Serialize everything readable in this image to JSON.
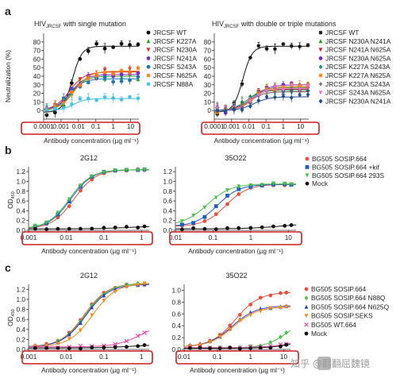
{
  "figure": {
    "panel_labels": [
      "a",
      "b",
      "c"
    ],
    "watermark": "知乎 @翻翻屈魏镜",
    "watermark_logo_text": "知乎",
    "highlight_color": "#cc1f1f"
  },
  "chart_data": [
    {
      "id": "a-left",
      "panel": "a",
      "type": "line",
      "title": "HIV_JRCSF with single mutation",
      "title_main": "HIV",
      "title_sub": "JRCSF",
      "title_rest": " with single mutation",
      "ylabel": "Neutralization (%)",
      "xlabel": "Antibody concentration (µg ml⁻¹)",
      "xscale": "log",
      "xlim": [
        0.0001,
        30
      ],
      "ylim": [
        -10,
        90
      ],
      "xticks": [
        0.0001,
        0.001,
        0.01,
        0.1,
        1,
        10
      ],
      "xtick_labels": [
        "0.0001",
        "0.001",
        "0.01",
        "0.1",
        "1",
        "10"
      ],
      "yticks": [
        0,
        10,
        20,
        30,
        40,
        50,
        60,
        70,
        80
      ],
      "ytick_labels": [
        "0",
        "10",
        "20",
        "30",
        "40",
        "50",
        "60",
        "70",
        "80"
      ],
      "x": [
        0.00015,
        0.00045,
        0.0014,
        0.0041,
        0.0123,
        0.037,
        0.11,
        0.33,
        1,
        3,
        9,
        27
      ],
      "legend_position": "right",
      "series": [
        {
          "name": "JRCSF WT",
          "color": "#111111",
          "marker": "circle",
          "curve": {
            "bottom": -2,
            "top": 75,
            "ec50": 0.0045,
            "hill": 1.6
          }
        },
        {
          "name": "JRCSF K227A",
          "color": "#2ca02c",
          "marker": "triangle-up",
          "curve": {
            "bottom": 0,
            "top": 40,
            "ec50": 0.004,
            "hill": 1.1
          }
        },
        {
          "name": "JRCSF N230A",
          "color": "#d62728",
          "marker": "triangle-down",
          "curve": {
            "bottom": 0,
            "top": 45,
            "ec50": 0.003,
            "hill": 1.0
          }
        },
        {
          "name": "JRCSF N241A",
          "color": "#7b2fbe",
          "marker": "circle",
          "curve": {
            "bottom": 0,
            "top": 42,
            "ec50": 0.0035,
            "hill": 1.0
          }
        },
        {
          "name": "JRCSF S243A",
          "color": "#1f77b4",
          "marker": "circle",
          "curve": {
            "bottom": 0,
            "top": 37,
            "ec50": 0.003,
            "hill": 1.1
          }
        },
        {
          "name": "JRCSF N625A",
          "color": "#ff7f0e",
          "marker": "star",
          "curve": {
            "bottom": 0,
            "top": 46,
            "ec50": 0.006,
            "hill": 1.0
          }
        },
        {
          "name": "JRCSF N88A",
          "color": "#3fc0e0",
          "marker": "star",
          "curve": {
            "bottom": 0,
            "top": 14,
            "ec50": 0.005,
            "hill": 1.2
          }
        }
      ]
    },
    {
      "id": "a-right",
      "panel": "a",
      "type": "line",
      "title": "HIV_JRCSF with double or triple mutations",
      "title_main": "HIV",
      "title_sub": "JRCSF",
      "title_rest": " with double or triple mutations",
      "ylabel": "",
      "xlabel": "Antibody concentration (µg ml⁻¹)",
      "xscale": "log",
      "xlim": [
        0.0001,
        30
      ],
      "ylim": [
        -10,
        90
      ],
      "xticks": [
        0.0001,
        0.001,
        0.01,
        0.1,
        1,
        10
      ],
      "xtick_labels": [
        "0.0001",
        "0.001",
        "0.01",
        "0.1",
        "1",
        "10"
      ],
      "yticks": [
        0,
        10,
        20,
        30,
        40,
        50,
        60,
        70,
        80
      ],
      "ytick_labels": [
        "0",
        "10",
        "20",
        "30",
        "40",
        "50",
        "60",
        "70",
        "80"
      ],
      "x": [
        0.00015,
        0.00045,
        0.0014,
        0.0041,
        0.0123,
        0.037,
        0.11,
        0.33,
        1,
        3,
        9,
        27
      ],
      "legend_position": "right",
      "series": [
        {
          "name": "JRCSF WT",
          "color": "#111111",
          "marker": "star",
          "curve": {
            "bottom": -2,
            "top": 75,
            "ec50": 0.0045,
            "hill": 1.6
          }
        },
        {
          "name": "JRCSF N230A N241A",
          "color": "#2ca02c",
          "marker": "triangle-up",
          "curve": {
            "bottom": 0,
            "top": 27,
            "ec50": 0.01,
            "hill": 1.0
          }
        },
        {
          "name": "JRCSF N241A N625A",
          "color": "#d62728",
          "marker": "triangle-down",
          "curve": {
            "bottom": 0,
            "top": 25,
            "ec50": 0.012,
            "hill": 1.0
          }
        },
        {
          "name": "JRCSF N230A N625A",
          "color": "#7b2fbe",
          "marker": "circle",
          "curve": {
            "bottom": 0,
            "top": 30,
            "ec50": 0.02,
            "hill": 1.0
          }
        },
        {
          "name": "JRCSF K227A S243A",
          "color": "#2b8a6e",
          "marker": "diamond",
          "curve": {
            "bottom": 0,
            "top": 24,
            "ec50": 0.008,
            "hill": 1.0
          }
        },
        {
          "name": "JRCSF K227A N625A",
          "color": "#ff7f0e",
          "marker": "star",
          "curve": {
            "bottom": 0,
            "top": 28,
            "ec50": 0.02,
            "hill": 1.0
          }
        },
        {
          "name": "JRCSF K230A S243A",
          "color": "#555555",
          "marker": "plus",
          "curve": {
            "bottom": 0,
            "top": 22,
            "ec50": 0.01,
            "hill": 1.0
          }
        },
        {
          "name": "JRCSF S243A N625A",
          "color": "#e377c2",
          "marker": "triangle-down",
          "curve": {
            "bottom": 0,
            "top": 26,
            "ec50": 0.015,
            "hill": 1.0
          }
        },
        {
          "name": "JRCSF N230A N241A",
          "color": "#1f4e8c",
          "marker": "diamond",
          "curve": {
            "bottom": 0,
            "top": 16,
            "ec50": 0.02,
            "hill": 1.0
          }
        }
      ]
    },
    {
      "id": "b-left",
      "panel": "b",
      "type": "line",
      "title": "2G12",
      "ylabel": "OD_450",
      "ylabel_main": "OD",
      "ylabel_sub": "450",
      "xlabel": "Antibody concentration (µg ml⁻¹)",
      "xscale": "log",
      "xlim": [
        0.001,
        1.6
      ],
      "ylim": [
        0,
        1.3
      ],
      "xticks": [
        0.001,
        0.01,
        0.1,
        1
      ],
      "xtick_labels": [
        "0.001",
        "0.01",
        "0.1",
        "1"
      ],
      "yticks": [
        0,
        0.2,
        0.4,
        0.6,
        0.8,
        1.0,
        1.2
      ],
      "ytick_labels": [
        "0.0",
        "0.2",
        "0.4",
        "0.6",
        "0.8",
        "1.0",
        "1.2"
      ],
      "x": [
        0.0015,
        0.003,
        0.006,
        0.012,
        0.024,
        0.048,
        0.1,
        0.2,
        0.4,
        0.8,
        1.2
      ],
      "legend_position": "none",
      "series": [
        {
          "name": "BG505 SOSIP.664",
          "color": "#e8523b",
          "marker": "circle",
          "curve": {
            "bottom": 0.03,
            "top": 1.24,
            "ec50": 0.016,
            "hill": 1.5
          }
        },
        {
          "name": "BG505 SOSIP.664 +kif",
          "color": "#1f5fbf",
          "marker": "square",
          "curve": {
            "bottom": 0.03,
            "top": 1.24,
            "ec50": 0.013,
            "hill": 1.5
          }
        },
        {
          "name": "BG505 SOSIP.664 293S",
          "color": "#4cc04a",
          "marker": "triangle-down",
          "curve": {
            "bottom": 0.03,
            "top": 1.24,
            "ec50": 0.012,
            "hill": 1.5
          }
        },
        {
          "name": "Mock",
          "color": "#111111",
          "marker": "circle",
          "curve": {
            "bottom": 0.03,
            "top": 0.09,
            "ec50": 0.5,
            "hill": 1.0
          }
        }
      ]
    },
    {
      "id": "b-right",
      "panel": "b",
      "type": "line",
      "title": "35O22",
      "ylabel": "",
      "xlabel": "Antibody concentration (µg ml⁻¹)",
      "xscale": "log",
      "xlim": [
        0.01,
        16
      ],
      "ylim": [
        0,
        1.3
      ],
      "xticks": [
        0.01,
        0.1,
        1,
        10
      ],
      "xtick_labels": [
        "0.01",
        "0.1",
        "1",
        "10"
      ],
      "yticks": [
        0,
        0.2,
        0.4,
        0.6,
        0.8,
        1.0,
        1.2
      ],
      "ytick_labels": [
        "0.0",
        "0.2",
        "0.4",
        "0.6",
        "0.8",
        "1.0",
        "1.2"
      ],
      "x": [
        0.015,
        0.03,
        0.06,
        0.12,
        0.24,
        0.48,
        1,
        2,
        4,
        8,
        12
      ],
      "legend_position": "right",
      "series": [
        {
          "name": "BG505 SOSIP.664",
          "color": "#e8523b",
          "marker": "circle",
          "curve": {
            "bottom": 0.08,
            "top": 0.94,
            "ec50": 0.22,
            "hill": 1.5
          }
        },
        {
          "name": "BG505 SOSIP.664 +kif",
          "color": "#1f5fbf",
          "marker": "square",
          "curve": {
            "bottom": 0.08,
            "top": 0.94,
            "ec50": 0.13,
            "hill": 1.5
          }
        },
        {
          "name": "BG505 SOSIP.664 293S",
          "color": "#4cc04a",
          "marker": "triangle-down",
          "curve": {
            "bottom": 0.1,
            "top": 0.95,
            "ec50": 0.07,
            "hill": 1.4
          }
        },
        {
          "name": "Mock",
          "color": "#111111",
          "marker": "circle",
          "curve": {
            "bottom": 0.03,
            "top": 0.14,
            "ec50": 6,
            "hill": 1.0
          }
        }
      ]
    },
    {
      "id": "c-left",
      "panel": "c",
      "type": "line",
      "title": "2G12",
      "ylabel": "OD_450",
      "ylabel_main": "OD",
      "ylabel_sub": "450",
      "xlabel": "Antibody concentration (µg ml⁻¹)",
      "xscale": "log",
      "xlim": [
        0.001,
        1.6
      ],
      "ylim": [
        0,
        1.3
      ],
      "xticks": [
        0.001,
        0.01,
        0.1,
        1
      ],
      "xtick_labels": [
        "0.001",
        "0.01",
        "0.1",
        "1"
      ],
      "yticks": [
        0,
        0.2,
        0.4,
        0.6,
        0.8,
        1.0,
        1.2
      ],
      "ytick_labels": [
        "0.0",
        "0.2",
        "0.4",
        "0.6",
        "0.8",
        "1.0",
        "1.2"
      ],
      "x": [
        0.0015,
        0.003,
        0.006,
        0.012,
        0.024,
        0.048,
        0.1,
        0.2,
        0.4,
        0.8,
        1.2
      ],
      "legend_position": "none",
      "series": [
        {
          "name": "BG505 SOSIP.664",
          "color": "#e8523b",
          "marker": "circle",
          "curve": {
            "bottom": 0.05,
            "top": 1.32,
            "ec50": 0.03,
            "hill": 1.4
          }
        },
        {
          "name": "BG505 SOSIP.664 N88Q",
          "color": "#4cc04a",
          "marker": "diamond",
          "curve": {
            "bottom": 0.05,
            "top": 1.32,
            "ec50": 0.032,
            "hill": 1.4
          }
        },
        {
          "name": "BG505 SOSIP.664 N625Q",
          "color": "#2c3fbf",
          "marker": "triangle-up",
          "curve": {
            "bottom": 0.05,
            "top": 1.3,
            "ec50": 0.033,
            "hill": 1.4
          }
        },
        {
          "name": "BG505 SOSIP.SEKS",
          "color": "#f08c1e",
          "marker": "triangle-down",
          "curve": {
            "bottom": 0.05,
            "top": 1.32,
            "ec50": 0.05,
            "hill": 1.4
          }
        },
        {
          "name": "BG505 WT.664",
          "color": "#e84aa8",
          "marker": "x",
          "curve": {
            "bottom": 0.05,
            "top": 0.55,
            "ec50": 1.0,
            "hill": 1.3
          }
        },
        {
          "name": "Mock",
          "color": "#111111",
          "marker": "circle",
          "curve": {
            "bottom": 0.03,
            "top": 0.1,
            "ec50": 0.6,
            "hill": 1.0
          }
        }
      ]
    },
    {
      "id": "c-right",
      "panel": "c",
      "type": "line",
      "title": "35O22",
      "ylabel": "",
      "xlabel": "Antibody concentration (µg ml⁻¹)",
      "xscale": "log",
      "xlim": [
        0.01,
        16
      ],
      "ylim": [
        0,
        1.1
      ],
      "xticks": [
        0.01,
        0.1,
        1,
        10
      ],
      "xtick_labels": [
        "0.01",
        "0.1",
        "1",
        "10"
      ],
      "yticks": [
        0,
        0.2,
        0.4,
        0.6,
        0.8,
        1.0
      ],
      "ytick_labels": [
        "0.0",
        "0.2",
        "0.4",
        "0.6",
        "0.8",
        "1.0"
      ],
      "x": [
        0.015,
        0.03,
        0.06,
        0.12,
        0.24,
        0.48,
        1,
        2,
        4,
        8,
        12
      ],
      "legend_position": "right",
      "series": [
        {
          "name": "BG505 SOSIP.664",
          "color": "#e8523b",
          "marker": "circle",
          "curve": {
            "bottom": 0.04,
            "top": 0.97,
            "ec50": 0.35,
            "hill": 1.2
          }
        },
        {
          "name": "BG505 SOSIP.664 N88Q",
          "color": "#4cc04a",
          "marker": "diamond",
          "curve": {
            "bottom": 0.02,
            "top": 0.6,
            "ec50": 15,
            "hill": 1.2
          }
        },
        {
          "name": "BG505 SOSIP.664 N625Q",
          "color": "#2c3fbf",
          "marker": "triangle-up",
          "curve": {
            "bottom": 0.04,
            "top": 0.74,
            "ec50": 0.28,
            "hill": 1.2
          }
        },
        {
          "name": "BG505 SOSIP.SEKS",
          "color": "#f08c1e",
          "marker": "triangle-down",
          "curve": {
            "bottom": 0.04,
            "top": 0.72,
            "ec50": 0.3,
            "hill": 1.2
          }
        },
        {
          "name": "BG505 WT.664",
          "color": "#e84aa8",
          "marker": "x",
          "curve": {
            "bottom": 0.03,
            "top": 0.3,
            "ec50": 40,
            "hill": 1.0
          }
        },
        {
          "name": "Mock",
          "color": "#111111",
          "marker": "circle",
          "curve": {
            "bottom": 0.02,
            "top": 0.35,
            "ec50": 60,
            "hill": 1.0
          }
        }
      ]
    }
  ]
}
